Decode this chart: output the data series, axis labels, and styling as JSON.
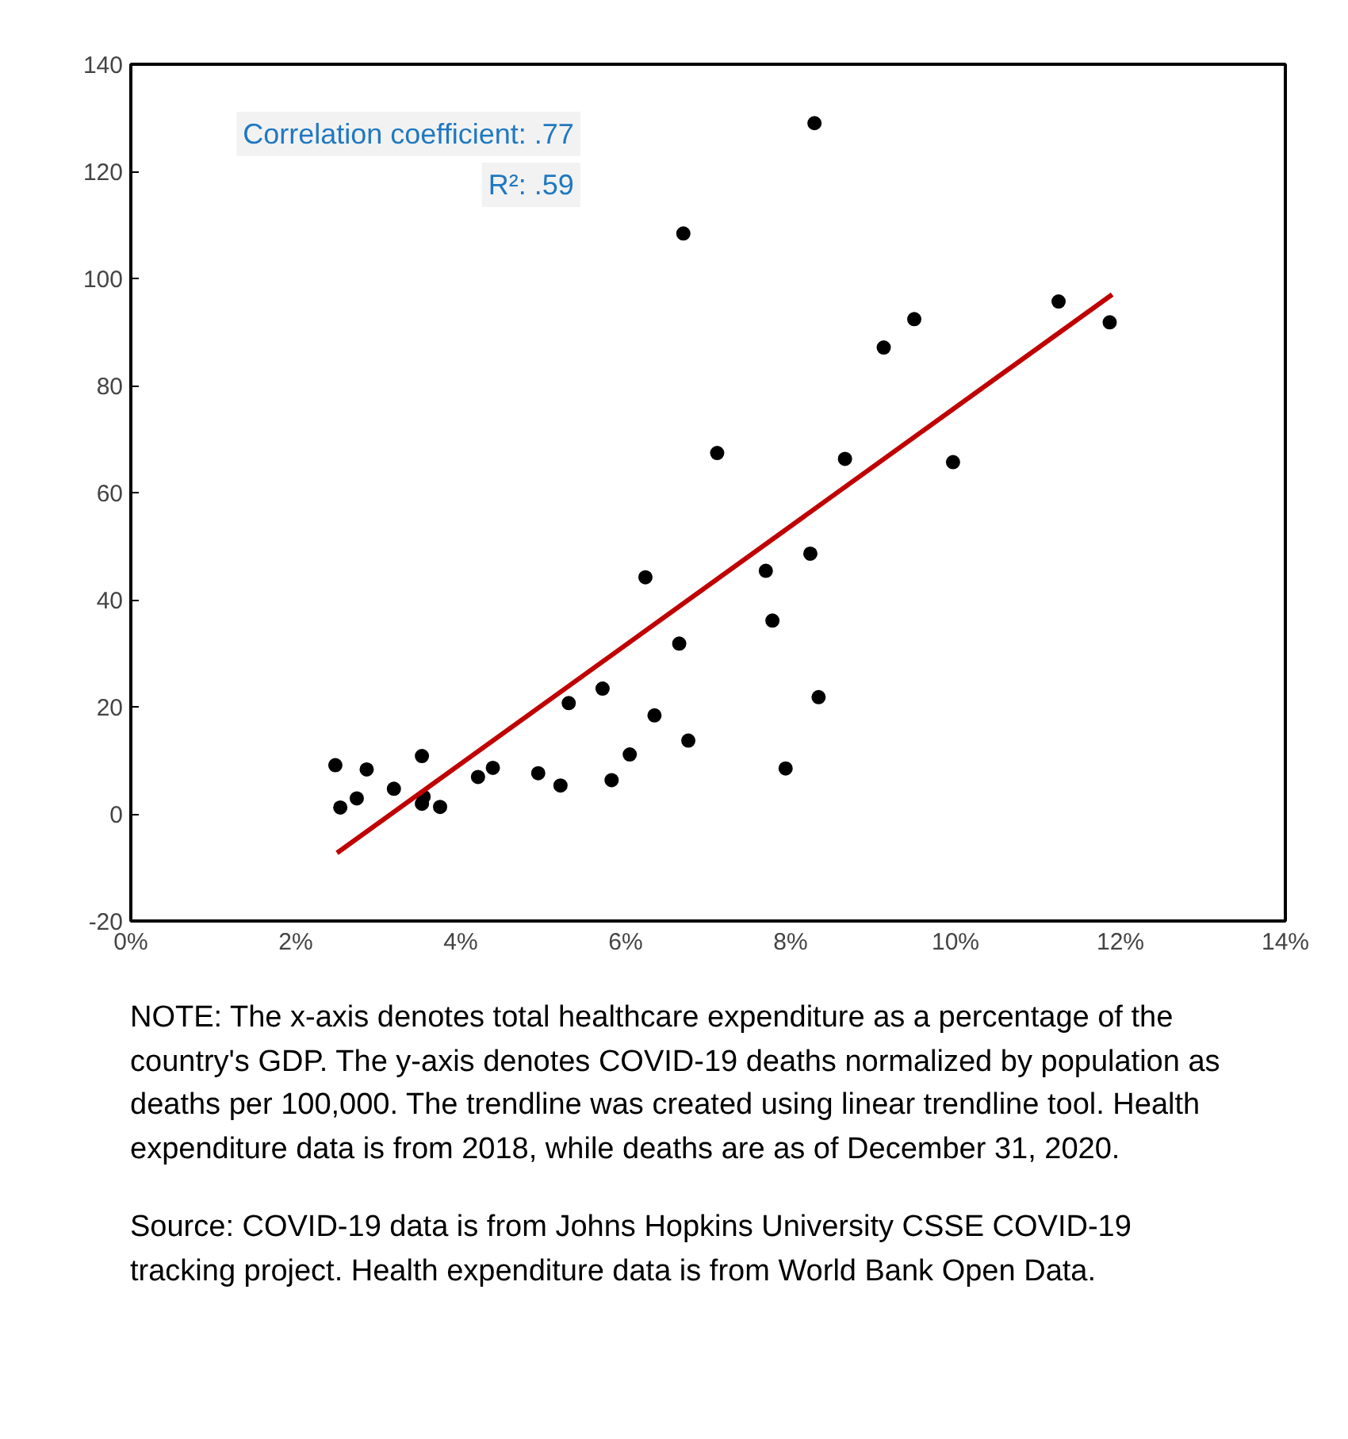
{
  "chart_data": {
    "type": "scatter",
    "annotations": [
      "Correlation coefficient: .77",
      "R²: .59",
      "NOTE: The x-axis denotes total healthcare expenditure as a percentage of the country's GDP. The y-axis denotes COVID-19 deaths normalized by population as deaths per 100,000. The trendline was created using linear trendline tool. Health expenditure data is from 2018, while deaths are as of December 31, 2020.",
      "Source: COVID-19 data is from Johns Hopkins University CSSE COVID-19 tracking project. Health expenditure data is from World Bank Open Data."
    ],
    "xlim": [
      0,
      14
    ],
    "ylim": [
      -20,
      140
    ],
    "xticks": [
      {
        "value": 0,
        "label": "0%"
      },
      {
        "value": 2,
        "label": "2%"
      },
      {
        "value": 4,
        "label": "4%"
      },
      {
        "value": 6,
        "label": "6%"
      },
      {
        "value": 8,
        "label": "8%"
      },
      {
        "value": 10,
        "label": "10%"
      },
      {
        "value": 12,
        "label": "12%"
      },
      {
        "value": 14,
        "label": "14%"
      }
    ],
    "yticks": [
      -20,
      0,
      20,
      40,
      60,
      80,
      100,
      120,
      140
    ],
    "grid": false,
    "series": [
      {
        "marker": "circle",
        "color": "#000000",
        "x": [
          2.48,
          2.54,
          2.74,
          2.86,
          3.19,
          3.53,
          3.55,
          3.53,
          3.75,
          4.21,
          4.39,
          4.94,
          5.21,
          5.31,
          5.72,
          5.83,
          6.05,
          6.24,
          6.35,
          6.65,
          6.76,
          7.7,
          7.78,
          7.94,
          8.24,
          8.34,
          8.29,
          6.7,
          7.11,
          8.66,
          9.13,
          9.5,
          9.97,
          11.25,
          11.87
        ],
        "values": [
          9.1,
          1.2,
          2.9,
          8.3,
          4.7,
          10.8,
          3.2,
          1.9,
          1.3,
          6.9,
          8.6,
          7.6,
          5.3,
          20.7,
          23.4,
          6.3,
          11.1,
          44.2,
          18.4,
          31.8,
          13.7,
          45.4,
          36.1,
          8.5,
          48.6,
          21.8,
          129,
          108.4,
          67.4,
          66.3,
          87.1,
          92.4,
          65.7,
          95.7,
          91.8
        ]
      },
      {
        "type": "line",
        "color": "#c00000",
        "x": [
          2.5,
          11.9
        ],
        "values": [
          -7.3,
          97
        ]
      }
    ]
  }
}
